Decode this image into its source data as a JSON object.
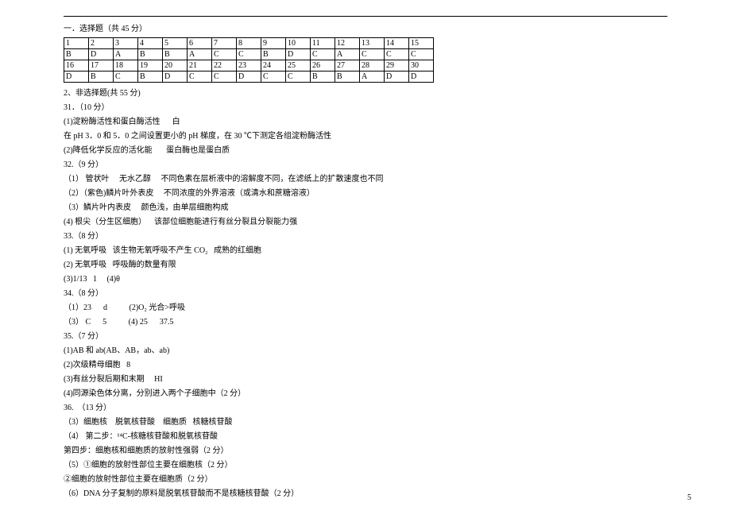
{
  "sec1_title": "一．选择题（共 45 分）",
  "table": {
    "r1": [
      "1",
      "2",
      "3",
      "4",
      "5",
      "6",
      "7",
      "8",
      "9",
      "10",
      "11",
      "12",
      "13",
      "14",
      "15"
    ],
    "r2": [
      "B",
      "D",
      "A",
      "B",
      "B",
      "A",
      "C",
      "C",
      "B",
      "D",
      "C",
      "A",
      "C",
      "C",
      "C"
    ],
    "r3": [
      "16",
      "17",
      "18",
      "19",
      "20",
      "21",
      "22",
      "23",
      "24",
      "25",
      "26",
      "27",
      "28",
      "29",
      "30"
    ],
    "r4": [
      "D",
      "B",
      "C",
      "B",
      "D",
      "C",
      "C",
      "D",
      "C",
      "C",
      "B",
      "B",
      "A",
      "D",
      "D"
    ]
  },
  "sec2_title": "2、非选择题(共 55 分)",
  "q31_h": "31．（10 分）",
  "q31_1": "(1)淀粉酶活性和蛋白酶活性      白",
  "q31_2": "在 pH 3．0 和 5．0 之间设置更小的 pH 梯度，在 30 ℃下测定各组淀粉酶活性",
  "q31_3": "(2)降低化学反应的活化能       蛋白酶也是蛋白质",
  "q32_h": "32.（9 分）",
  "q32_1": "（1） 管状叶     无水乙醇     不同色素在层析液中的溶解度不同，在滤纸上的扩散速度也不同",
  "q32_2": "（2）（紫色)鳞片叶外表皮     不同浓度的外界溶液（或清水和蔗糖溶液）",
  "q32_3": "（3）鳞片叶内表皮     颜色浅，由单层细胞构成",
  "q32_4": "(4) 根尖（分生区细胞）    该部位细胞能进行有丝分裂且分裂能力强",
  "q33_h": "33.（8 分）",
  "q33_1": "(1) 无氧呼吸   该生物无氧呼吸不产生 CO₂   成熟的红细胞",
  "q33_2": "(2) 无氧呼吸   呼吸酶的数量有限",
  "q33_3": "(3)1/13   1     (4)θ",
  "q34_h": "34.（8 分）",
  "q34_1": "（1）23      d           (2)O₂ 光合>呼吸",
  "q34_2": "（3） C      5           (4) 25      37.5",
  "q35_h": "35.（7 分）",
  "q35_1": "(1)AB 和 ab(AB、AB，ab、ab)",
  "q35_2": "(2)次级精母细胞   8",
  "q35_3": "(3)有丝分裂后期和末期     HI",
  "q35_4": "(4)同源染色体分离，分别进入两个子细胞中（2 分）",
  "q36_h": "36.  （13 分）",
  "q36_3": "（3）细胞核    脱氧核苷酸    细胞质   核糖核苷酸",
  "q36_4a": "（4） 第二步：¹⁴C-核糖核苷酸和脱氧核苷酸",
  "q36_4b": "第四步：细胞核和细胞质的放射性强弱（2 分）",
  "q36_5a": "（5）①细胞的放射性部位主要在细胞核（2 分）",
  "q36_5b": "②细胞的放射性部位主要在细胞质（2 分）",
  "q36_6": "（6）DNA 分子复制的原料是脱氧核苷酸而不是核糖核苷酸（2 分）",
  "pagenum": "5"
}
